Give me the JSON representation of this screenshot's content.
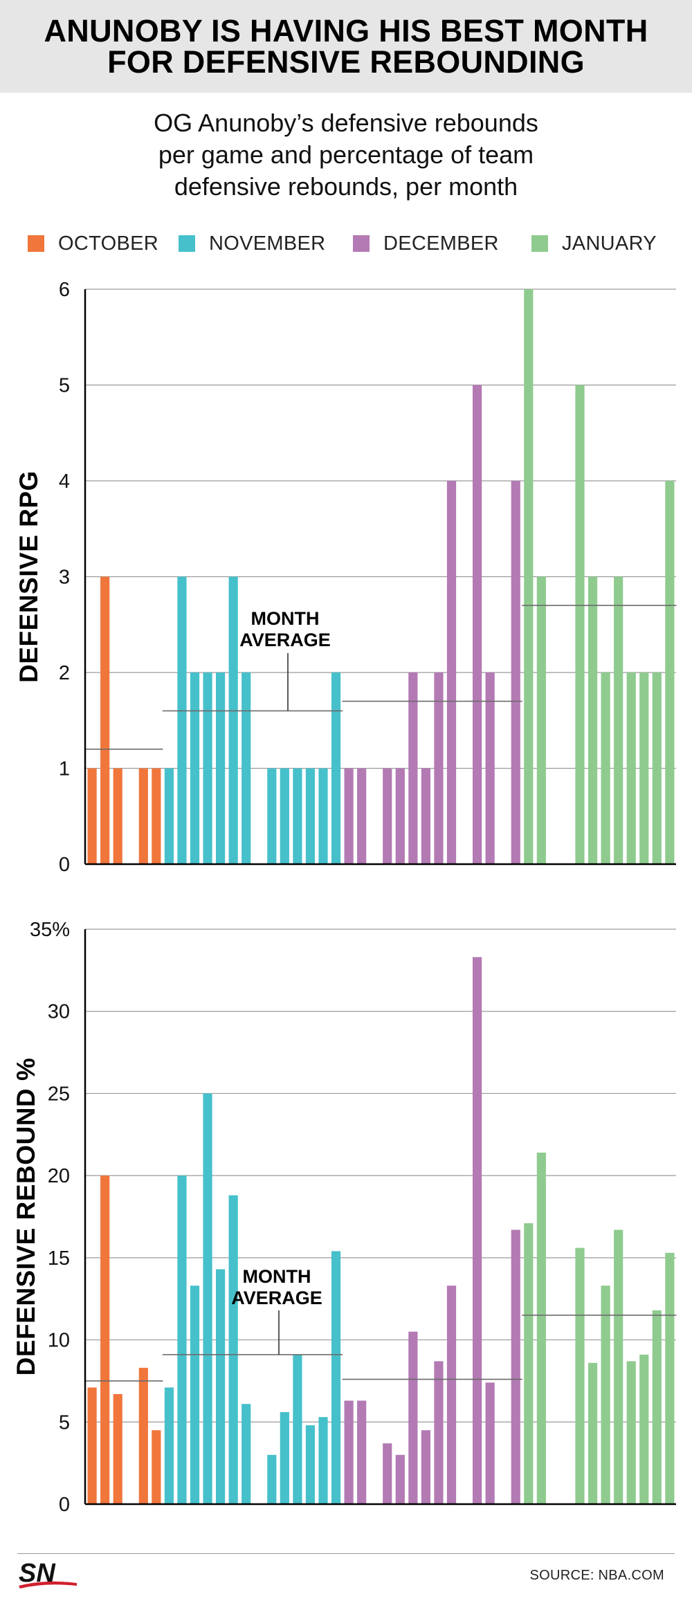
{
  "header": {
    "title_line1": "ANUNOBY IS HAVING HIS BEST MONTH",
    "title_line2": "FOR DEFENSIVE REBOUNDING",
    "subtitle_line1": "OG Anunoby’s defensive rebounds",
    "subtitle_line2": "per game and percentage of team",
    "subtitle_line3": "defensive rebounds, per month"
  },
  "legend": [
    {
      "label": "OCTOBER",
      "color": "#f0763c"
    },
    {
      "label": "NOVEMBER",
      "color": "#46c0cb"
    },
    {
      "label": "DECEMBER",
      "color": "#b37ab4"
    },
    {
      "label": "JANUARY",
      "color": "#8fcb8f"
    }
  ],
  "footer": {
    "logo": "SN",
    "source": "SOURCE: NBA.COM"
  },
  "chart_data": [
    {
      "type": "bar",
      "ylabel": "DEFENSIVE RPG",
      "ylim": [
        0,
        6
      ],
      "yticks": [
        "0",
        "1",
        "2",
        "3",
        "4",
        "5",
        "6"
      ],
      "grid": true,
      "annotation": [
        "MONTH",
        "AVERAGE"
      ],
      "series": [
        {
          "name": "OCTOBER",
          "color": "#f0763c",
          "values": [
            1,
            3,
            1,
            null,
            1,
            1
          ],
          "month_average": 1.2
        },
        {
          "name": "NOVEMBER",
          "color": "#46c0cb",
          "values": [
            1,
            3,
            2,
            2,
            2,
            3,
            2,
            null,
            1,
            1,
            1,
            1,
            1,
            2
          ],
          "month_average": 1.6
        },
        {
          "name": "DECEMBER",
          "color": "#b37ab4",
          "values": [
            1,
            1,
            null,
            1,
            1,
            2,
            1,
            2,
            4,
            null,
            5,
            2,
            null,
            4
          ],
          "month_average": 1.7
        },
        {
          "name": "JANUARY",
          "color": "#8fcb8f",
          "values": [
            6,
            3,
            null,
            null,
            5,
            3,
            2,
            3,
            2,
            2,
            2,
            4
          ],
          "month_average": 2.7
        }
      ]
    },
    {
      "type": "bar",
      "ylabel": "DEFENSIVE REBOUND %",
      "ylim": [
        0,
        35
      ],
      "yticks": [
        "0",
        "5",
        "10",
        "15",
        "20",
        "25",
        "30",
        "35%"
      ],
      "grid": true,
      "annotation": [
        "MONTH",
        "AVERAGE"
      ],
      "series": [
        {
          "name": "OCTOBER",
          "color": "#f0763c",
          "values": [
            7.1,
            20,
            6.7,
            null,
            8.3,
            4.5
          ],
          "month_average": 7.5
        },
        {
          "name": "NOVEMBER",
          "color": "#46c0cb",
          "values": [
            7.1,
            20,
            13.3,
            25,
            14.3,
            18.8,
            6.1,
            null,
            3,
            5.6,
            9.1,
            4.8,
            5.3,
            15.4
          ],
          "month_average": 9.1
        },
        {
          "name": "DECEMBER",
          "color": "#b37ab4",
          "values": [
            6.3,
            6.3,
            null,
            3.7,
            3,
            10.5,
            4.5,
            8.7,
            13.3,
            null,
            33.3,
            7.4,
            null,
            16.7
          ],
          "month_average": 7.6
        },
        {
          "name": "JANUARY",
          "color": "#8fcb8f",
          "values": [
            17.1,
            21.4,
            null,
            null,
            15.6,
            8.6,
            13.3,
            16.7,
            8.7,
            9.1,
            11.8,
            15.3
          ],
          "month_average": 11.5
        }
      ]
    }
  ]
}
